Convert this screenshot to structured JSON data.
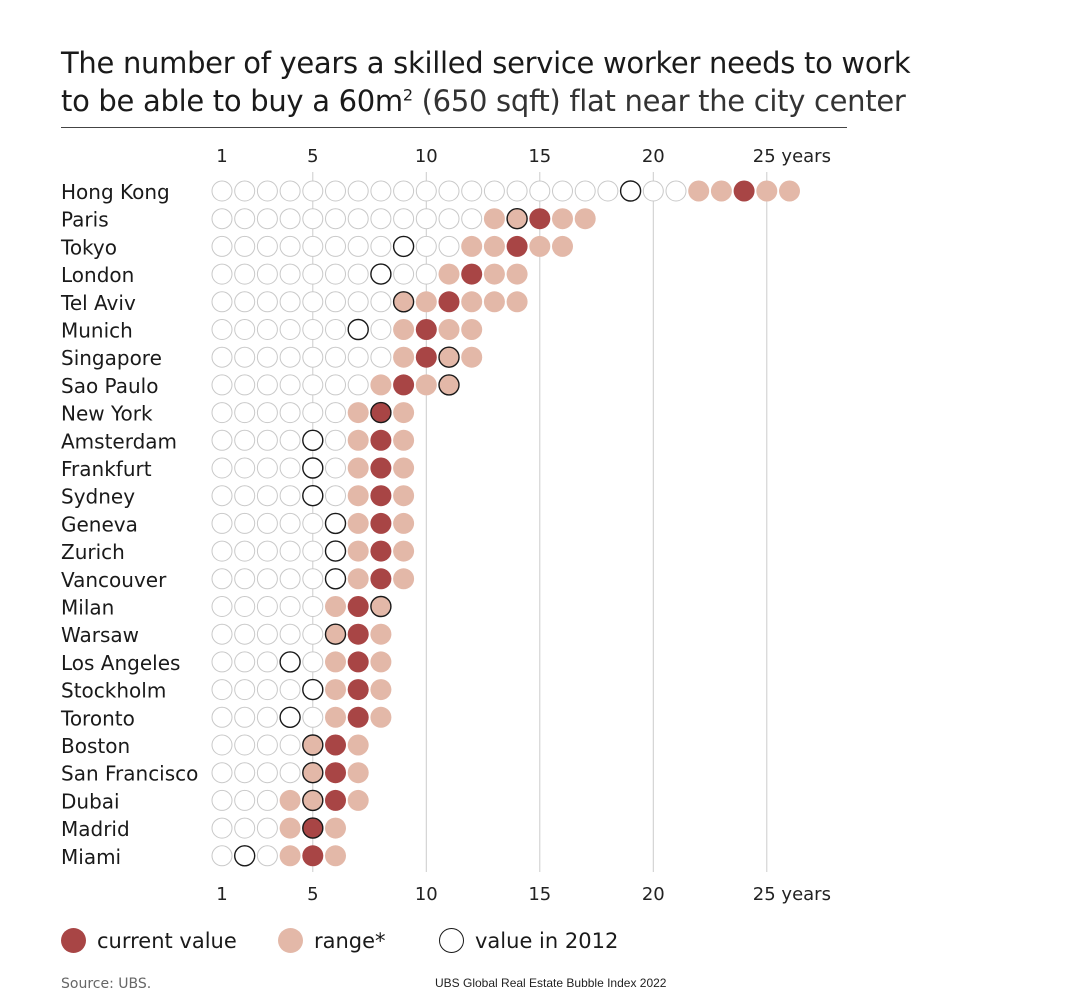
{
  "title": {
    "line1": "The number of years a skilled service worker needs to work",
    "line2_main": "to be able to buy a 60m",
    "line2_sup": "2",
    "line2_light": "(650 sqft) flat near the city center"
  },
  "colors": {
    "current": "#a84545",
    "range": "#e3b8a8",
    "empty_stroke": "#c9c9c9",
    "year2012_stroke": "#1a1a1a",
    "grid": "#cccccc"
  },
  "chart_data": {
    "type": "dot-plot",
    "xlim": [
      1,
      26
    ],
    "xticks": [
      1,
      5,
      10,
      15,
      20,
      25
    ],
    "xtick_labels": [
      "1",
      "5",
      "10",
      "15",
      "20",
      "25 years"
    ],
    "legend": {
      "current": "current value",
      "range": "range*",
      "year2012": "value in 2012"
    },
    "cities": [
      {
        "name": "Hong Kong",
        "current": 24,
        "range": [
          22,
          26
        ],
        "y2012": 19
      },
      {
        "name": "Paris",
        "current": 15,
        "range": [
          13,
          17
        ],
        "y2012": 14
      },
      {
        "name": "Tokyo",
        "current": 14,
        "range": [
          12,
          16
        ],
        "y2012": 9
      },
      {
        "name": "London",
        "current": 12,
        "range": [
          11,
          14
        ],
        "y2012": 8
      },
      {
        "name": "Tel Aviv",
        "current": 11,
        "range": [
          9,
          14
        ],
        "y2012": 9
      },
      {
        "name": "Munich",
        "current": 10,
        "range": [
          9,
          12
        ],
        "y2012": 7
      },
      {
        "name": "Singapore",
        "current": 10,
        "range": [
          9,
          12
        ],
        "y2012": 11
      },
      {
        "name": "Sao Paulo",
        "current": 9,
        "range": [
          8,
          11
        ],
        "y2012": 11
      },
      {
        "name": "New York",
        "current": 8,
        "range": [
          7,
          9
        ],
        "y2012": 8
      },
      {
        "name": "Amsterdam",
        "current": 8,
        "range": [
          7,
          9
        ],
        "y2012": 5
      },
      {
        "name": "Frankfurt",
        "current": 8,
        "range": [
          7,
          9
        ],
        "y2012": 5
      },
      {
        "name": "Sydney",
        "current": 8,
        "range": [
          7,
          9
        ],
        "y2012": 5
      },
      {
        "name": "Geneva",
        "current": 8,
        "range": [
          7,
          9
        ],
        "y2012": 6
      },
      {
        "name": "Zurich",
        "current": 8,
        "range": [
          7,
          9
        ],
        "y2012": 6
      },
      {
        "name": "Vancouver",
        "current": 8,
        "range": [
          7,
          9
        ],
        "y2012": 6
      },
      {
        "name": "Milan",
        "current": 7,
        "range": [
          6,
          8
        ],
        "y2012": 8
      },
      {
        "name": "Warsaw",
        "current": 7,
        "range": [
          6,
          8
        ],
        "y2012": 6
      },
      {
        "name": "Los Angeles",
        "current": 7,
        "range": [
          6,
          8
        ],
        "y2012": 4
      },
      {
        "name": "Stockholm",
        "current": 7,
        "range": [
          6,
          8
        ],
        "y2012": 5
      },
      {
        "name": "Toronto",
        "current": 7,
        "range": [
          6,
          8
        ],
        "y2012": 4
      },
      {
        "name": "Boston",
        "current": 6,
        "range": [
          5,
          7
        ],
        "y2012": 5
      },
      {
        "name": "San Francisco",
        "current": 6,
        "range": [
          5,
          7
        ],
        "y2012": 5
      },
      {
        "name": "Dubai",
        "current": 6,
        "range": [
          4,
          7
        ],
        "y2012": 5
      },
      {
        "name": "Madrid",
        "current": 5,
        "range": [
          4,
          6
        ],
        "y2012": 5
      },
      {
        "name": "Miami",
        "current": 5,
        "range": [
          4,
          6
        ],
        "y2012": 2
      }
    ]
  },
  "footer": {
    "source": "Source: UBS.",
    "report": "UBS Global Real Estate Bubble Index 2022"
  }
}
